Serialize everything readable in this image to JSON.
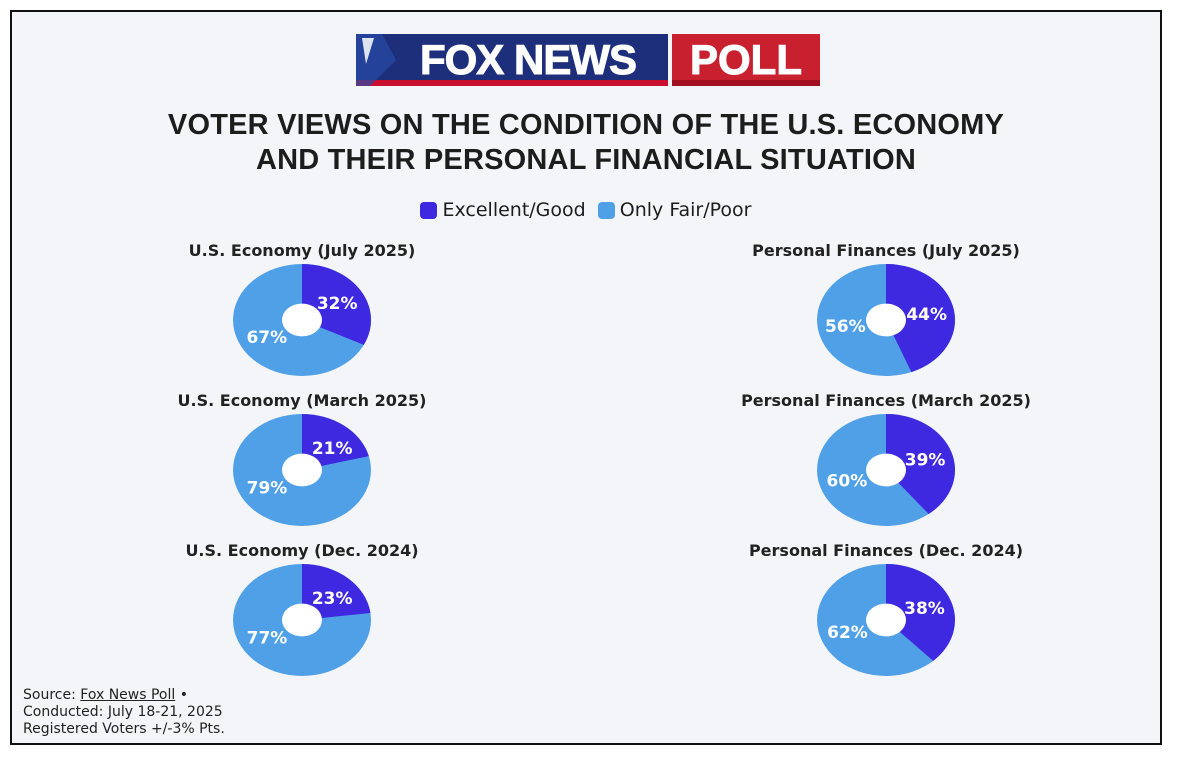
{
  "brand": {
    "left": "FOX NEWS",
    "right": "POLL"
  },
  "title": {
    "line1": "VOTER VIEWS ON THE CONDITION OF THE U.S. ECONOMY",
    "line2": "AND THEIR PERSONAL FINANCIAL SITUATION"
  },
  "legend": [
    {
      "label": "Excellent/Good",
      "color": "#3f29e0"
    },
    {
      "label": "Only Fair/Poor",
      "color": "#50a0e8"
    }
  ],
  "source": {
    "prefix": "Source: ",
    "link": "Fox News Poll",
    "suffix": " •",
    "conducted": "Conducted: July 18-21, 2025",
    "sample": "Registered Voters +/-3% Pts."
  },
  "chart_data": [
    {
      "type": "pie",
      "title": "U.S. Economy (July 2025)",
      "categories": [
        "Excellent/Good",
        "Only Fair/Poor"
      ],
      "values": [
        32,
        67
      ],
      "labels": [
        "32%",
        "67%"
      ]
    },
    {
      "type": "pie",
      "title": "Personal Finances (July 2025)",
      "categories": [
        "Excellent/Good",
        "Only Fair/Poor"
      ],
      "values": [
        44,
        56
      ],
      "labels": [
        "44%",
        "56%"
      ]
    },
    {
      "type": "pie",
      "title": "U.S. Economy (March 2025)",
      "categories": [
        "Excellent/Good",
        "Only Fair/Poor"
      ],
      "values": [
        21,
        79
      ],
      "labels": [
        "21%",
        "79%"
      ]
    },
    {
      "type": "pie",
      "title": "Personal Finances (March 2025)",
      "categories": [
        "Excellent/Good",
        "Only Fair/Poor"
      ],
      "values": [
        39,
        60
      ],
      "labels": [
        "39%",
        "60%"
      ]
    },
    {
      "type": "pie",
      "title": "U.S. Economy (Dec. 2024)",
      "categories": [
        "Excellent/Good",
        "Only Fair/Poor"
      ],
      "values": [
        23,
        77
      ],
      "labels": [
        "23%",
        "77%"
      ]
    },
    {
      "type": "pie",
      "title": "Personal Finances (Dec. 2024)",
      "categories": [
        "Excellent/Good",
        "Only Fair/Poor"
      ],
      "values": [
        38,
        62
      ],
      "labels": [
        "38%",
        "62%"
      ]
    }
  ]
}
